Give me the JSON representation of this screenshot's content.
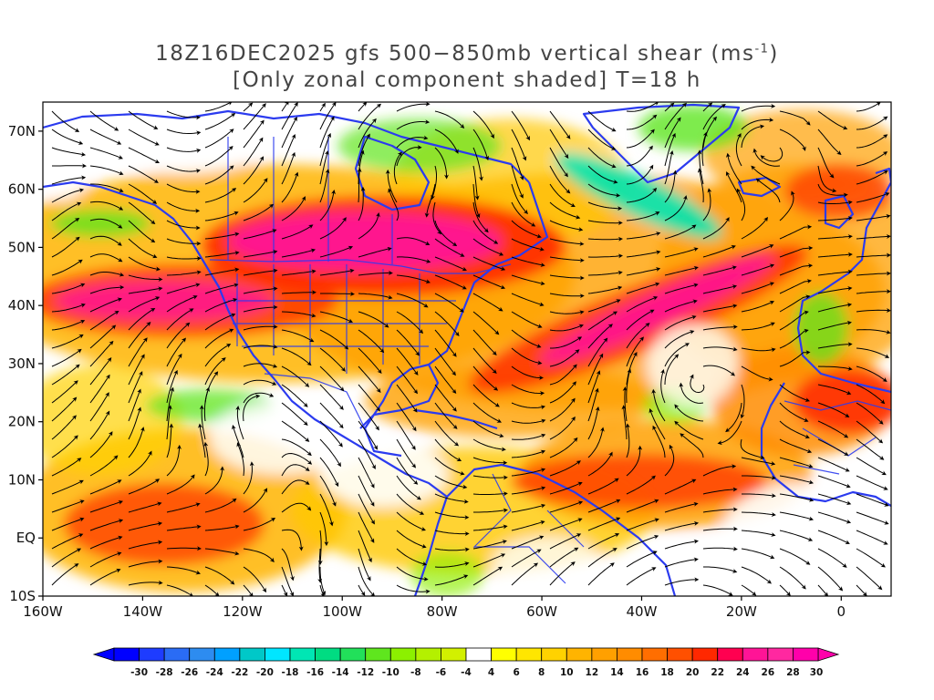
{
  "title": {
    "line1_prefix": "18Z16DEC2025 gfs 500−850mb vertical shear (ms",
    "line1_sup": "-1",
    "line1_suffix": ")",
    "line2": "[Only zonal component shaded] T=18 h"
  },
  "map": {
    "lon_range": [
      -160,
      10
    ],
    "lat_range": [
      -10,
      75
    ],
    "lat_labels": [
      {
        "lat": 70,
        "text": "70N"
      },
      {
        "lat": 60,
        "text": "60N"
      },
      {
        "lat": 50,
        "text": "50N"
      },
      {
        "lat": 40,
        "text": "40N"
      },
      {
        "lat": 30,
        "text": "30N"
      },
      {
        "lat": 20,
        "text": "20N"
      },
      {
        "lat": 10,
        "text": "10N"
      },
      {
        "lat": 0,
        "text": "EQ"
      },
      {
        "lat": -10,
        "text": "10S"
      }
    ],
    "lon_labels": [
      {
        "lon": -160,
        "text": "160W"
      },
      {
        "lon": -140,
        "text": "140W"
      },
      {
        "lon": -120,
        "text": "120W"
      },
      {
        "lon": -100,
        "text": "100W"
      },
      {
        "lon": -80,
        "text": "80W"
      },
      {
        "lon": -60,
        "text": "60W"
      },
      {
        "lon": -40,
        "text": "40W"
      },
      {
        "lon": -20,
        "text": "20W"
      },
      {
        "lon": 0,
        "text": "0"
      }
    ],
    "coast_color": "#2b3bef",
    "streamline_color": "#000000"
  },
  "colorbar": {
    "values": [
      "-30",
      "-28",
      "-26",
      "-24",
      "-22",
      "-20",
      "-18",
      "-16",
      "-14",
      "-12",
      "-10",
      "-8",
      "-6",
      "-4",
      "4",
      "6",
      "8",
      "10",
      "12",
      "14",
      "16",
      "18",
      "20",
      "22",
      "24",
      "26",
      "28",
      "30"
    ],
    "colors": [
      "#0000ff",
      "#1e3cff",
      "#2a6cf5",
      "#2d8cf0",
      "#00a0ff",
      "#00c8c8",
      "#00e6ff",
      "#00e6b4",
      "#00dc82",
      "#22e05a",
      "#5fe61e",
      "#8cf000",
      "#b4f000",
      "#d2f000",
      "#ffffff",
      "#ffff00",
      "#ffe600",
      "#ffd200",
      "#ffb400",
      "#ffa000",
      "#ff8c00",
      "#ff6e00",
      "#ff5000",
      "#ff2800",
      "#ff0050",
      "#ff1496",
      "#ff28a0",
      "#ff00aa"
    ]
  }
}
